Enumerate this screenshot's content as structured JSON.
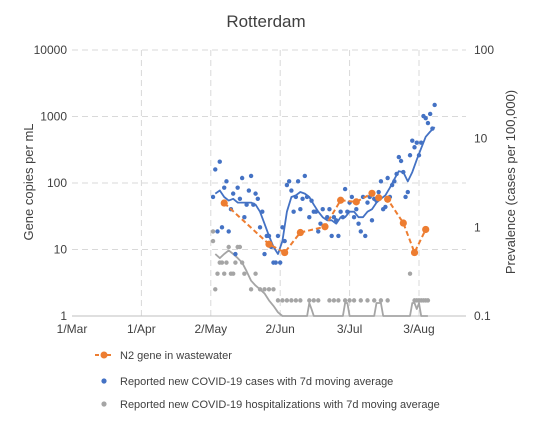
{
  "chart_data": {
    "type": "line",
    "title": "Rotterdam",
    "ylabel": "Gene copies per mL",
    "y2label": "Prevalence (cases per 100,000)",
    "x_ticks": [
      "1/Mar",
      "1/Apr",
      "2/May",
      "2/Jun",
      "3/Jul",
      "3/Aug"
    ],
    "x_tick_days": [
      0,
      31,
      62,
      93,
      124,
      155
    ],
    "xlim_days": [
      0,
      176
    ],
    "ylim": [
      1,
      10000
    ],
    "y_ticks": [
      "1",
      "10",
      "100",
      "1000",
      "10000"
    ],
    "y2lim": [
      0.1,
      100
    ],
    "y2_ticks": [
      "0.1",
      "1",
      "10",
      "100"
    ],
    "yscale": "log",
    "grid": true,
    "legend_position": "bottom",
    "series": [
      {
        "name": "N2 gene in wastewater",
        "axis": "left",
        "style": "line-markers",
        "color": "#ED7D31",
        "x": [
          "2020-05-08",
          "2020-05-28",
          "2020-06-04",
          "2020-06-11",
          "2020-06-22",
          "2020-06-29",
          "2020-07-06",
          "2020-07-13",
          "2020-07-16",
          "2020-07-20",
          "2020-07-27",
          "2020-08-01",
          "2020-08-06"
        ],
        "values": [
          50,
          12,
          9,
          18,
          22,
          55,
          52,
          70,
          60,
          57,
          25,
          9,
          20
        ]
      },
      {
        "name": "Reported new COVID-19 cases with 7d moving average",
        "axis": "right",
        "style": "dots",
        "color": "#4472C4",
        "x": [
          "2020-05-03",
          "2020-05-04",
          "2020-05-05",
          "2020-05-06",
          "2020-05-07",
          "2020-05-08",
          "2020-05-09",
          "2020-05-10",
          "2020-05-11",
          "2020-05-12",
          "2020-05-13",
          "2020-05-14",
          "2020-05-15",
          "2020-05-16",
          "2020-05-17",
          "2020-05-18",
          "2020-05-19",
          "2020-05-20",
          "2020-05-21",
          "2020-05-22",
          "2020-05-23",
          "2020-05-24",
          "2020-05-25",
          "2020-05-26",
          "2020-05-27",
          "2020-05-28",
          "2020-05-29",
          "2020-05-30",
          "2020-05-31",
          "2020-06-01",
          "2020-06-02",
          "2020-06-03",
          "2020-06-04",
          "2020-06-05",
          "2020-06-06",
          "2020-06-07",
          "2020-06-08",
          "2020-06-09",
          "2020-06-10",
          "2020-06-11",
          "2020-06-12",
          "2020-06-13",
          "2020-06-14",
          "2020-06-15",
          "2020-06-16",
          "2020-06-17",
          "2020-06-18",
          "2020-06-19",
          "2020-06-20",
          "2020-06-21",
          "2020-06-22",
          "2020-06-23",
          "2020-06-24",
          "2020-06-25",
          "2020-06-26",
          "2020-06-27",
          "2020-06-28",
          "2020-06-29",
          "2020-06-30",
          "2020-07-01",
          "2020-07-02",
          "2020-07-03",
          "2020-07-04",
          "2020-07-05",
          "2020-07-06",
          "2020-07-07",
          "2020-07-08",
          "2020-07-09",
          "2020-07-10",
          "2020-07-11",
          "2020-07-12",
          "2020-07-13",
          "2020-07-14",
          "2020-07-15",
          "2020-07-16",
          "2020-07-17",
          "2020-07-18",
          "2020-07-19",
          "2020-07-20",
          "2020-07-21",
          "2020-07-22",
          "2020-07-23",
          "2020-07-24",
          "2020-07-25",
          "2020-07-26",
          "2020-07-27",
          "2020-07-28",
          "2020-07-29",
          "2020-07-30",
          "2020-07-31",
          "2020-08-01",
          "2020-08-02",
          "2020-08-03",
          "2020-08-04",
          "2020-08-05",
          "2020-08-06",
          "2020-08-07",
          "2020-08-08",
          "2020-08-09",
          "2020-08-10"
        ],
        "values": [
          2.2,
          4.5,
          0.9,
          5.5,
          1.0,
          2.8,
          3.3,
          0.9,
          1.6,
          2.4,
          0.5,
          2.8,
          2.1,
          3.6,
          1.3,
          1.8,
          2.6,
          3.8,
          1.8,
          2.4,
          2.1,
          1.0,
          1.5,
          0.5,
          0.8,
          0.8,
          0.6,
          0.4,
          0.4,
          0.8,
          0.4,
          1.0,
          0.7,
          3.0,
          3.3,
          2.6,
          1.5,
          2.2,
          3.3,
          1.6,
          2.1,
          3.8,
          2.2,
          1.3,
          2.0,
          1.5,
          1.5,
          0.9,
          1.1,
          1.6,
          1.0,
          1.3,
          1.6,
          0.8,
          1.3,
          1.2,
          0.8,
          1.5,
          1.3,
          2.7,
          1.5,
          1.9,
          2.2,
          1.3,
          1.6,
          1.1,
          0.9,
          2.2,
          0.8,
          1.9,
          2.2,
          1.2,
          2.1,
          2.0,
          2.5,
          3.3,
          1.6,
          1.7,
          3.6,
          2.2,
          3.0,
          3.3,
          4.0,
          6.2,
          5.6,
          4.2,
          2.2,
          2.5,
          6.5,
          9.5,
          8.0,
          9.0,
          6.5,
          9.0,
          18.0,
          17.0,
          15.0,
          19.0,
          13.0,
          24.0
        ]
      },
      {
        "name": "Reported new COVID-19 cases with 7d moving average",
        "axis": "right",
        "style": "line",
        "color": "#4472C4",
        "x": [
          "2020-05-04",
          "2020-05-06",
          "2020-05-08",
          "2020-05-10",
          "2020-05-12",
          "2020-05-14",
          "2020-05-16",
          "2020-05-18",
          "2020-05-20",
          "2020-05-22",
          "2020-05-24",
          "2020-05-26",
          "2020-05-28",
          "2020-05-30",
          "2020-06-01",
          "2020-06-03",
          "2020-06-05",
          "2020-06-07",
          "2020-06-09",
          "2020-06-11",
          "2020-06-13",
          "2020-06-15",
          "2020-06-17",
          "2020-06-19",
          "2020-06-21",
          "2020-06-23",
          "2020-06-25",
          "2020-06-27",
          "2020-06-29",
          "2020-07-01",
          "2020-07-03",
          "2020-07-05",
          "2020-07-07",
          "2020-07-09",
          "2020-07-11",
          "2020-07-13",
          "2020-07-15",
          "2020-07-17",
          "2020-07-19",
          "2020-07-21",
          "2020-07-23",
          "2020-07-25",
          "2020-07-27",
          "2020-07-29",
          "2020-07-31",
          "2020-08-02",
          "2020-08-04",
          "2020-08-06",
          "2020-08-08",
          "2020-08-10"
        ],
        "values": [
          2.4,
          2.6,
          2.2,
          2.0,
          2.1,
          1.9,
          1.9,
          1.9,
          1.9,
          1.8,
          1.5,
          1.1,
          0.8,
          0.6,
          0.5,
          0.7,
          1.5,
          2.2,
          2.3,
          2.5,
          2.4,
          2.2,
          1.8,
          1.5,
          1.3,
          1.2,
          1.2,
          1.1,
          1.3,
          1.3,
          1.5,
          1.5,
          1.3,
          1.3,
          1.5,
          1.6,
          1.9,
          2.1,
          2.3,
          2.8,
          3.5,
          4.3,
          4.2,
          3.3,
          4.2,
          5.8,
          7.8,
          10.5,
          12.0,
          13.5
        ]
      },
      {
        "name": "Reported new COVID-19 hospitalizations with 7d moving average",
        "axis": "right",
        "style": "dots",
        "color": "#A5A5A5",
        "x": [
          "2020-05-03",
          "2020-05-03",
          "2020-05-04",
          "2020-05-05",
          "2020-05-06",
          "2020-05-07",
          "2020-05-08",
          "2020-05-09",
          "2020-05-10",
          "2020-05-11",
          "2020-05-12",
          "2020-05-13",
          "2020-05-14",
          "2020-05-15",
          "2020-05-16",
          "2020-05-17",
          "2020-05-20",
          "2020-05-22",
          "2020-05-24",
          "2020-05-26",
          "2020-05-28",
          "2020-05-30",
          "2020-06-01",
          "2020-06-03",
          "2020-06-05",
          "2020-06-07",
          "2020-06-09",
          "2020-06-11",
          "2020-06-15",
          "2020-06-17",
          "2020-06-19",
          "2020-06-24",
          "2020-06-26",
          "2020-06-28",
          "2020-07-01",
          "2020-07-03",
          "2020-07-05",
          "2020-07-08",
          "2020-07-11",
          "2020-07-14",
          "2020-07-17",
          "2020-07-20",
          "2020-07-30",
          "2020-08-01",
          "2020-08-02",
          "2020-08-03",
          "2020-08-04",
          "2020-08-05",
          "2020-08-06",
          "2020-08-07"
        ],
        "values": [
          0.9,
          0.7,
          0.2,
          0.3,
          0.4,
          0.4,
          0.3,
          0.4,
          0.6,
          0.3,
          0.3,
          0.4,
          0.6,
          0.6,
          0.4,
          0.3,
          0.2,
          0.3,
          0.2,
          0.2,
          0.2,
          0.2,
          0.15,
          0.15,
          0.15,
          0.15,
          0.15,
          0.15,
          0.15,
          0.15,
          0.15,
          0.15,
          0.15,
          0.15,
          0.15,
          0.15,
          0.15,
          0.15,
          0.15,
          0.15,
          0.15,
          0.15,
          0.3,
          0.15,
          0.15,
          0.15,
          0.15,
          0.15,
          0.15,
          0.15
        ]
      },
      {
        "name": "Reported new COVID-19 hospitalizations with 7d moving average",
        "axis": "right",
        "style": "line",
        "color": "#A5A5A5",
        "x": [
          "2020-05-04",
          "2020-05-06",
          "2020-05-08",
          "2020-05-10",
          "2020-05-12",
          "2020-05-14",
          "2020-05-16",
          "2020-05-18",
          "2020-05-20",
          "2020-05-22",
          "2020-05-24",
          "2020-05-26",
          "2020-05-28",
          "2020-05-30",
          "2020-06-01",
          "2020-06-03",
          "2020-06-05",
          "2020-06-07",
          "2020-06-09",
          "2020-06-11",
          "2020-06-14",
          "2020-06-15",
          "2020-06-16",
          "2020-06-17",
          "2020-06-18",
          "2020-06-21",
          "2020-06-26",
          "2020-06-30",
          "2020-07-01",
          "2020-07-02",
          "2020-07-03",
          "2020-07-04",
          "2020-07-08",
          "2020-07-12",
          "2020-07-14",
          "2020-07-15",
          "2020-07-16",
          "2020-07-17",
          "2020-07-18",
          "2020-07-20",
          "2020-07-25",
          "2020-07-30",
          "2020-07-31",
          "2020-08-01",
          "2020-08-02",
          "2020-08-03",
          "2020-08-04",
          "2020-08-05",
          "2020-08-06",
          "2020-08-07"
        ],
        "values": [
          0.5,
          0.45,
          0.5,
          0.55,
          0.5,
          0.45,
          0.4,
          0.32,
          0.25,
          0.22,
          0.2,
          0.18,
          0.15,
          0.13,
          0.11,
          0.1,
          0.1,
          0.1,
          0.1,
          0.1,
          0.1,
          0.14,
          0.12,
          0.1,
          0.1,
          0.1,
          0.1,
          0.1,
          0.14,
          0.14,
          0.1,
          0.1,
          0.1,
          0.1,
          0.1,
          0.14,
          0.14,
          0.14,
          0.1,
          0.1,
          0.1,
          0.1,
          0.14,
          0.14,
          0.12,
          0.14,
          0.1,
          0.1,
          0.1,
          0.1
        ]
      }
    ],
    "legend": [
      {
        "label": "N2 gene in wastewater",
        "color": "#ED7D31",
        "style": "line-markers"
      },
      {
        "label": "Reported new COVID-19 cases with 7d moving average",
        "color": "#4472C4",
        "style": "dot"
      },
      {
        "label": "Reported new COVID-19 hospitalizations with 7d moving average",
        "color": "#A5A5A5",
        "style": "dot"
      }
    ]
  }
}
